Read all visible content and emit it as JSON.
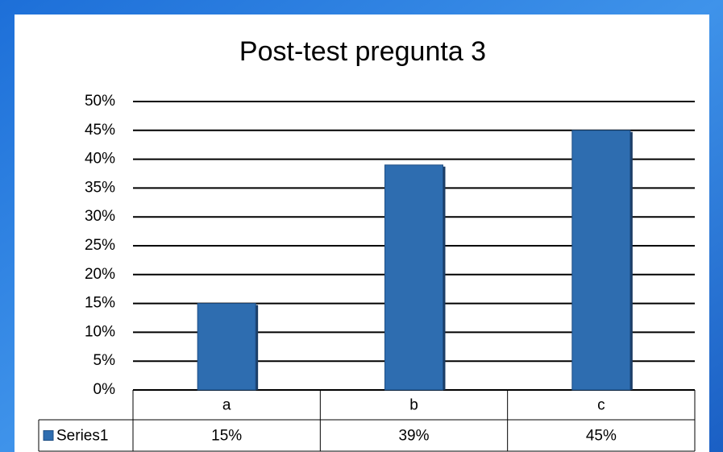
{
  "chart_data": {
    "type": "bar",
    "title": "Post-test pregunta 3",
    "categories": [
      "a",
      "b",
      "c"
    ],
    "series": [
      {
        "name": "Series1",
        "color": "#2e6db0",
        "values": [
          15,
          39,
          45
        ],
        "value_labels": [
          "15%",
          "39%",
          "45%"
        ]
      }
    ],
    "ylim": [
      0,
      50
    ],
    "yticks": [
      {
        "value": 0,
        "label": "0%"
      },
      {
        "value": 5,
        "label": "5%"
      },
      {
        "value": 10,
        "label": "10%"
      },
      {
        "value": 15,
        "label": "15%"
      },
      {
        "value": 20,
        "label": "20%"
      },
      {
        "value": 25,
        "label": "25%"
      },
      {
        "value": 30,
        "label": "30%"
      },
      {
        "value": 35,
        "label": "35%"
      },
      {
        "value": 40,
        "label": "40%"
      },
      {
        "value": 45,
        "label": "45%"
      },
      {
        "value": 50,
        "label": "50%"
      }
    ],
    "grid": true
  }
}
